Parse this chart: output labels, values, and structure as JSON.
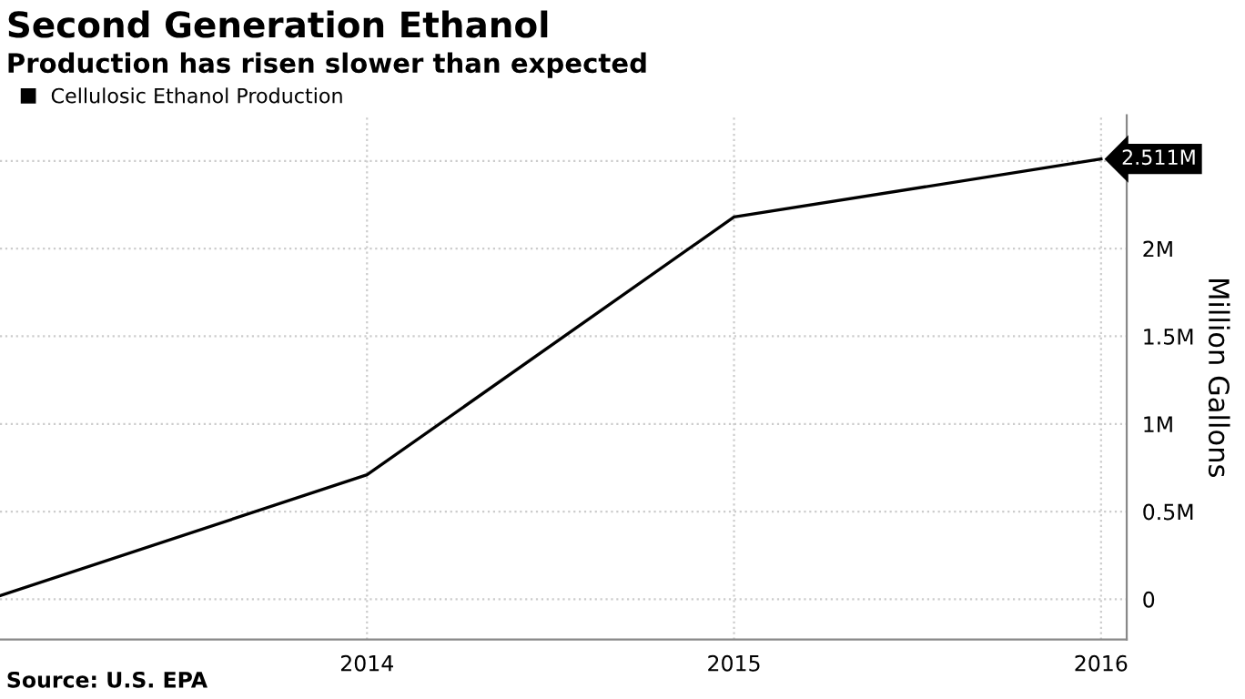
{
  "chart_data": {
    "type": "line",
    "title": "Second Generation Ethanol",
    "subtitle": "Production has risen slower than expected",
    "ylabel": "Million Gallons",
    "x": [
      2013,
      2014,
      2015,
      2016
    ],
    "series": [
      {
        "name": "Cellulosic Ethanol Production",
        "color": "#000000",
        "values": [
          0.02,
          0.71,
          2.18,
          2.511
        ],
        "value_labels": [
          null,
          null,
          null,
          "2.511M"
        ]
      }
    ],
    "xlim": [
      2013,
      2016.07
    ],
    "xticks": [
      2014,
      2015,
      2016
    ],
    "ylim": [
      -0.23,
      2.76
    ],
    "yticks": [
      {
        "value": 0,
        "label": "0"
      },
      {
        "value": 0.5,
        "label": "0.5M"
      },
      {
        "value": 1,
        "label": "1M"
      },
      {
        "value": 1.5,
        "label": "1.5M"
      },
      {
        "value": 2,
        "label": "2M"
      },
      {
        "value": 2.5,
        "label": null
      }
    ],
    "grid": true,
    "legend": "top left",
    "marker": "none",
    "line_style": "solid",
    "annotations": [
      "Source: U.S. EPA"
    ]
  }
}
